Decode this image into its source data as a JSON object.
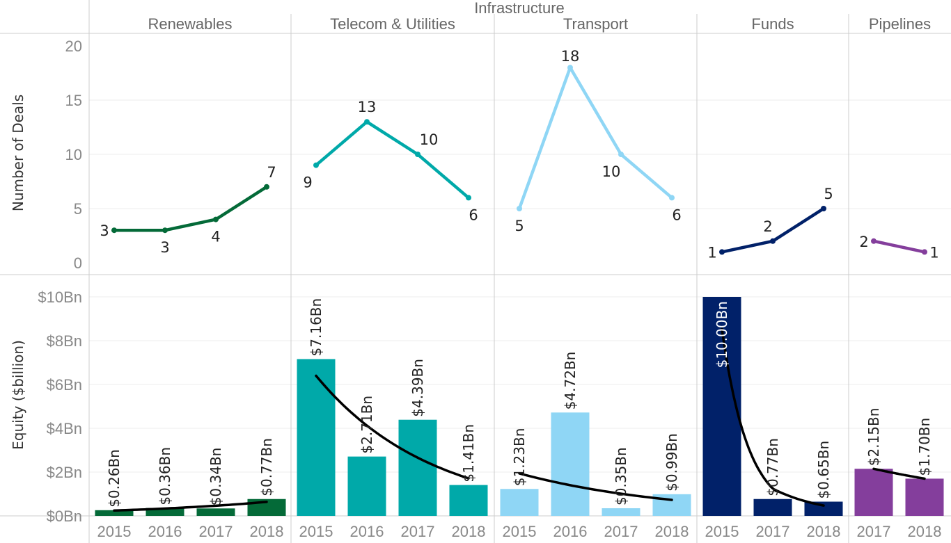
{
  "chart_data": [
    {
      "type": "line",
      "title": "Infrastructure",
      "ylabel": "Number of Deals",
      "ylim": [
        0,
        20
      ],
      "yticks": [
        "0",
        "5",
        "10",
        "15",
        "20"
      ],
      "grid": true,
      "panels": [
        {
          "name": "Renewables",
          "color": "#046a38",
          "x": [
            "2015",
            "2016",
            "2017",
            "2018"
          ],
          "values": [
            3,
            3,
            4,
            7
          ],
          "labels": [
            "3",
            "3",
            "4",
            "7"
          ]
        },
        {
          "name": "Telecom & Utilities",
          "color": "#00a9a9",
          "x": [
            "2015",
            "2016",
            "2017",
            "2018"
          ],
          "values": [
            9,
            13,
            10,
            6
          ],
          "labels": [
            "9",
            "13",
            "10",
            "6"
          ]
        },
        {
          "name": "Transport",
          "color": "#8fd6f5",
          "x": [
            "2015",
            "2016",
            "2017",
            "2018"
          ],
          "values": [
            5,
            18,
            10,
            6
          ],
          "labels": [
            "5",
            "18",
            "10",
            "6"
          ]
        },
        {
          "name": "Funds",
          "color": "#012169",
          "x": [
            "2015",
            "2017",
            "2018"
          ],
          "values": [
            1,
            2,
            5
          ],
          "labels": [
            "1",
            "2",
            "5"
          ]
        },
        {
          "name": "Pipelines",
          "color": "#843e9c",
          "x": [
            "2017",
            "2018"
          ],
          "values": [
            2,
            1
          ],
          "labels": [
            "2",
            "1"
          ]
        }
      ]
    },
    {
      "type": "bar",
      "title": "Infrastructure",
      "ylabel": "Equity ($billion)",
      "ylim": [
        0,
        10.5
      ],
      "yticks": [
        "$0Bn",
        "$2Bn",
        "$4Bn",
        "$6Bn",
        "$8Bn",
        "$10Bn"
      ],
      "grid": true,
      "trendline": "exponential",
      "panels": [
        {
          "name": "Renewables",
          "color": "#046a38",
          "x": [
            "2015",
            "2016",
            "2017",
            "2018"
          ],
          "values": [
            0.26,
            0.36,
            0.34,
            0.77
          ],
          "labels": [
            "$0.26Bn",
            "$0.36Bn",
            "$0.34Bn",
            "$0.77Bn"
          ]
        },
        {
          "name": "Telecom & Utilities",
          "color": "#00a9a9",
          "x": [
            "2015",
            "2016",
            "2017",
            "2018"
          ],
          "values": [
            7.16,
            2.71,
            4.39,
            1.41
          ],
          "labels": [
            "$7.16Bn",
            "$2.71Bn",
            "$4.39Bn",
            "$1.41Bn"
          ]
        },
        {
          "name": "Transport",
          "color": "#8fd6f5",
          "x": [
            "2015",
            "2016",
            "2017",
            "2018"
          ],
          "values": [
            1.23,
            4.72,
            0.35,
            0.99
          ],
          "labels": [
            "$1.23Bn",
            "$4.72Bn",
            "$0.35Bn",
            "$0.99Bn"
          ]
        },
        {
          "name": "Funds",
          "color": "#012169",
          "x": [
            "2015",
            "2017",
            "2018"
          ],
          "values": [
            10.0,
            0.77,
            0.65
          ],
          "labels": [
            "$10.00Bn",
            "$0.77Bn",
            "$0.65Bn"
          ]
        },
        {
          "name": "Pipelines",
          "color": "#843e9c",
          "x": [
            "2017",
            "2018"
          ],
          "values": [
            2.15,
            1.7
          ],
          "labels": [
            "$2.15Bn",
            "$1.70Bn"
          ]
        }
      ]
    }
  ],
  "header": {
    "group_title": "Infrastructure",
    "panels": [
      "Renewables",
      "Telecom & Utilities",
      "Transport",
      "Funds",
      "Pipelines"
    ]
  },
  "axes": {
    "top_ylabel": "Number of Deals",
    "bottom_ylabel": "Equity ($billion)"
  },
  "trend_color": "#000000",
  "grid_color": "#ececec",
  "border_color": "#cccccc"
}
